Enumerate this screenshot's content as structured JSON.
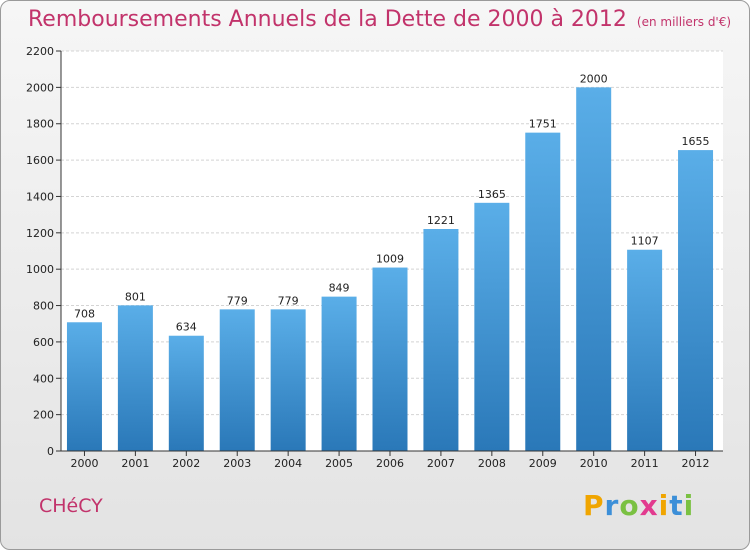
{
  "title": "Remboursements Annuels de la Dette de 2000 à 2012",
  "subtitle": "(en milliers d'€)",
  "commune": "CHéCY",
  "logo": {
    "letters": [
      "P",
      "r",
      "o",
      "x",
      "i",
      "t",
      "i"
    ],
    "colors": [
      "#f0a500",
      "#3c8fd8",
      "#7ac142",
      "#e23b8f",
      "#f0a500",
      "#3c8fd8",
      "#7ac142"
    ]
  },
  "colors": {
    "bar_top": "#5aaee8",
    "bar_bottom": "#2a78b8",
    "title": "#c2336b"
  },
  "chart_data": {
    "type": "bar",
    "title": "Remboursements Annuels de la Dette de 2000 à 2012",
    "categories": [
      "2000",
      "2001",
      "2002",
      "2003",
      "2004",
      "2005",
      "2006",
      "2007",
      "2008",
      "2009",
      "2010",
      "2011",
      "2012"
    ],
    "values": [
      708,
      801,
      634,
      779,
      779,
      849,
      1009,
      1221,
      1365,
      1751,
      2000,
      1107,
      1655
    ],
    "ylim": [
      0,
      2200
    ],
    "yticks": [
      0,
      200,
      400,
      600,
      800,
      1000,
      1200,
      1400,
      1600,
      1800,
      2000,
      2200
    ],
    "grid": true,
    "legend": "none"
  }
}
